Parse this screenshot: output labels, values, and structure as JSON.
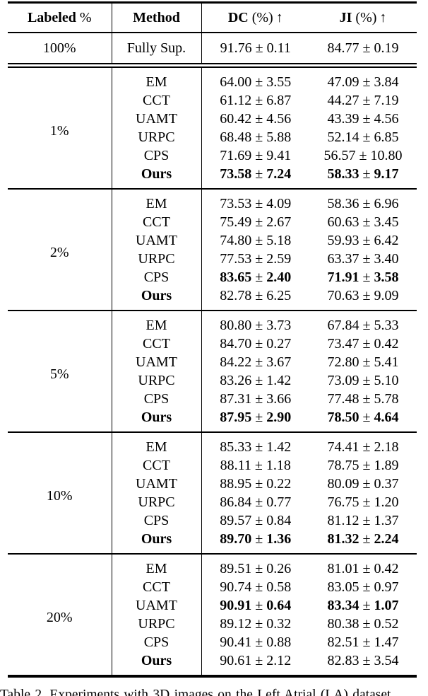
{
  "table": {
    "pm": "±",
    "columns": [
      {
        "label": "Labeled",
        "suffix": "%",
        "arrow": ""
      },
      {
        "label": "Method",
        "suffix": "",
        "arrow": ""
      },
      {
        "label": "DC",
        "suffix": "(%)",
        "arrow": "↑"
      },
      {
        "label": "JI",
        "suffix": "(%)",
        "arrow": "↑"
      }
    ],
    "fully_supervised": {
      "labeled": "100%",
      "method": "Fully Sup.",
      "dc_mean": "91.76",
      "dc_std": "0.11",
      "ji_mean": "84.77",
      "ji_std": "0.19"
    },
    "blocks": [
      {
        "labeled": "1%",
        "rows": [
          {
            "method": "EM",
            "dc_mean": "64.00",
            "dc_std": "3.55",
            "ji_mean": "47.09",
            "ji_std": "3.84"
          },
          {
            "method": "CCT",
            "dc_mean": "61.12",
            "dc_std": "6.87",
            "ji_mean": "44.27",
            "ji_std": "7.19"
          },
          {
            "method": "UAMT",
            "dc_mean": "60.42",
            "dc_std": "4.56",
            "ji_mean": "43.39",
            "ji_std": "4.56"
          },
          {
            "method": "URPC",
            "dc_mean": "68.48",
            "dc_std": "5.88",
            "ji_mean": "52.14",
            "ji_std": "6.85"
          },
          {
            "method": "CPS",
            "dc_mean": "71.69",
            "dc_std": "9.41",
            "ji_mean": "56.57",
            "ji_std": "10.80"
          },
          {
            "method": "Ours",
            "dc_mean": "73.58",
            "dc_std": "7.24",
            "ji_mean": "58.33",
            "ji_std": "9.17"
          }
        ]
      },
      {
        "labeled": "2%",
        "rows": [
          {
            "method": "EM",
            "dc_mean": "73.53",
            "dc_std": "4.09",
            "ji_mean": "58.36",
            "ji_std": "6.96"
          },
          {
            "method": "CCT",
            "dc_mean": "75.49",
            "dc_std": "2.67",
            "ji_mean": "60.63",
            "ji_std": "3.45"
          },
          {
            "method": "UAMT",
            "dc_mean": "74.80",
            "dc_std": "5.18",
            "ji_mean": "59.93",
            "ji_std": "6.42"
          },
          {
            "method": "URPC",
            "dc_mean": "77.53",
            "dc_std": "2.59",
            "ji_mean": "63.37",
            "ji_std": "3.40"
          },
          {
            "method": "CPS",
            "dc_mean": "83.65",
            "dc_std": "2.40",
            "ji_mean": "71.91",
            "ji_std": "3.58"
          },
          {
            "method": "Ours",
            "dc_mean": "82.78",
            "dc_std": "6.25",
            "ji_mean": "70.63",
            "ji_std": "9.09"
          }
        ]
      },
      {
        "labeled": "5%",
        "rows": [
          {
            "method": "EM",
            "dc_mean": "80.80",
            "dc_std": "3.73",
            "ji_mean": "67.84",
            "ji_std": "5.33"
          },
          {
            "method": "CCT",
            "dc_mean": "84.70",
            "dc_std": "0.27",
            "ji_mean": "73.47",
            "ji_std": "0.42"
          },
          {
            "method": "UAMT",
            "dc_mean": "84.22",
            "dc_std": "3.67",
            "ji_mean": "72.80",
            "ji_std": "5.41"
          },
          {
            "method": "URPC",
            "dc_mean": "83.26",
            "dc_std": "1.42",
            "ji_mean": "73.09",
            "ji_std": "5.10"
          },
          {
            "method": "CPS",
            "dc_mean": "87.31",
            "dc_std": "3.66",
            "ji_mean": "77.48",
            "ji_std": "5.78"
          },
          {
            "method": "Ours",
            "dc_mean": "87.95",
            "dc_std": "2.90",
            "ji_mean": "78.50",
            "ji_std": "4.64"
          }
        ]
      },
      {
        "labeled": "10%",
        "rows": [
          {
            "method": "EM",
            "dc_mean": "85.33",
            "dc_std": "1.42",
            "ji_mean": "74.41",
            "ji_std": "2.18"
          },
          {
            "method": "CCT",
            "dc_mean": "88.11",
            "dc_std": "1.18",
            "ji_mean": "78.75",
            "ji_std": "1.89"
          },
          {
            "method": "UAMT",
            "dc_mean": "88.95",
            "dc_std": "0.22",
            "ji_mean": "80.09",
            "ji_std": "0.37"
          },
          {
            "method": "URPC",
            "dc_mean": "86.84",
            "dc_std": "0.77",
            "ji_mean": "76.75",
            "ji_std": "1.20"
          },
          {
            "method": "CPS",
            "dc_mean": "89.57",
            "dc_std": "0.84",
            "ji_mean": "81.12",
            "ji_std": "1.37"
          },
          {
            "method": "Ours",
            "dc_mean": "89.70",
            "dc_std": "1.36",
            "ji_mean": "81.32",
            "ji_std": "2.24"
          }
        ]
      },
      {
        "labeled": "20%",
        "rows": [
          {
            "method": "EM",
            "dc_mean": "89.51",
            "dc_std": "0.26",
            "ji_mean": "81.01",
            "ji_std": "0.42"
          },
          {
            "method": "CCT",
            "dc_mean": "90.74",
            "dc_std": "0.58",
            "ji_mean": "83.05",
            "ji_std": "0.97"
          },
          {
            "method": "UAMT",
            "dc_mean": "90.91",
            "dc_std": "0.64",
            "ji_mean": "83.34",
            "ji_std": "1.07"
          },
          {
            "method": "URPC",
            "dc_mean": "89.12",
            "dc_std": "0.32",
            "ji_mean": "80.38",
            "ji_std": "0.52"
          },
          {
            "method": "CPS",
            "dc_mean": "90.41",
            "dc_std": "0.88",
            "ji_mean": "82.51",
            "ji_std": "1.47"
          },
          {
            "method": "Ours",
            "dc_mean": "90.61",
            "dc_std": "2.12",
            "ji_mean": "82.83",
            "ji_std": "3.54"
          }
        ]
      }
    ]
  },
  "caption": "Table 2. Experiments with 3D images on the Left Atrial (LA) dataset."
}
